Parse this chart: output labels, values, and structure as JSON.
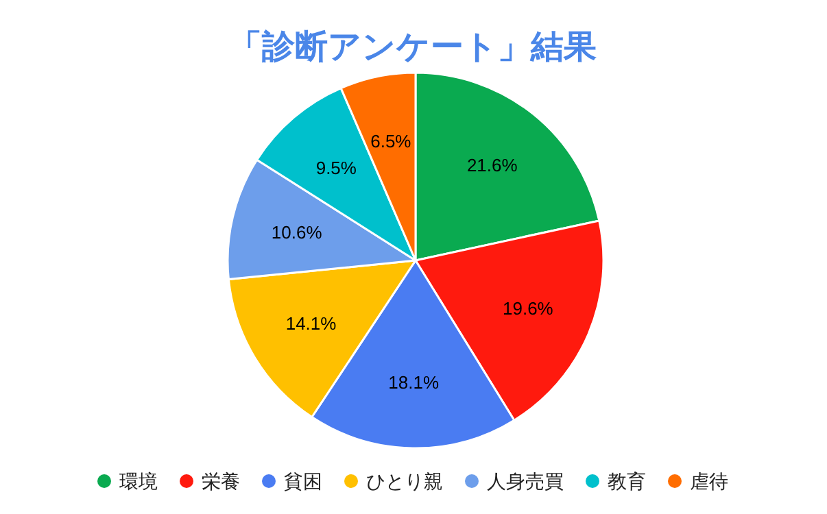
{
  "chart_data": {
    "type": "pie",
    "title": "「診断アンケート」結果",
    "categories": [
      "環境",
      "栄養",
      "貧困",
      "ひとり親",
      "人身売買",
      "教育",
      "虐待"
    ],
    "values": [
      21.6,
      19.6,
      18.1,
      14.1,
      10.6,
      9.5,
      6.5
    ],
    "colors": [
      "#0aaa50",
      "#ff1a0e",
      "#4a7cf2",
      "#ffc000",
      "#6d9eeb",
      "#00c0cc",
      "#ff6d00"
    ],
    "value_labels": [
      "21.6%",
      "19.6%",
      "18.1%",
      "14.1%",
      "10.6%",
      "9.5%",
      "6.5%"
    ],
    "legend": "bottom"
  }
}
